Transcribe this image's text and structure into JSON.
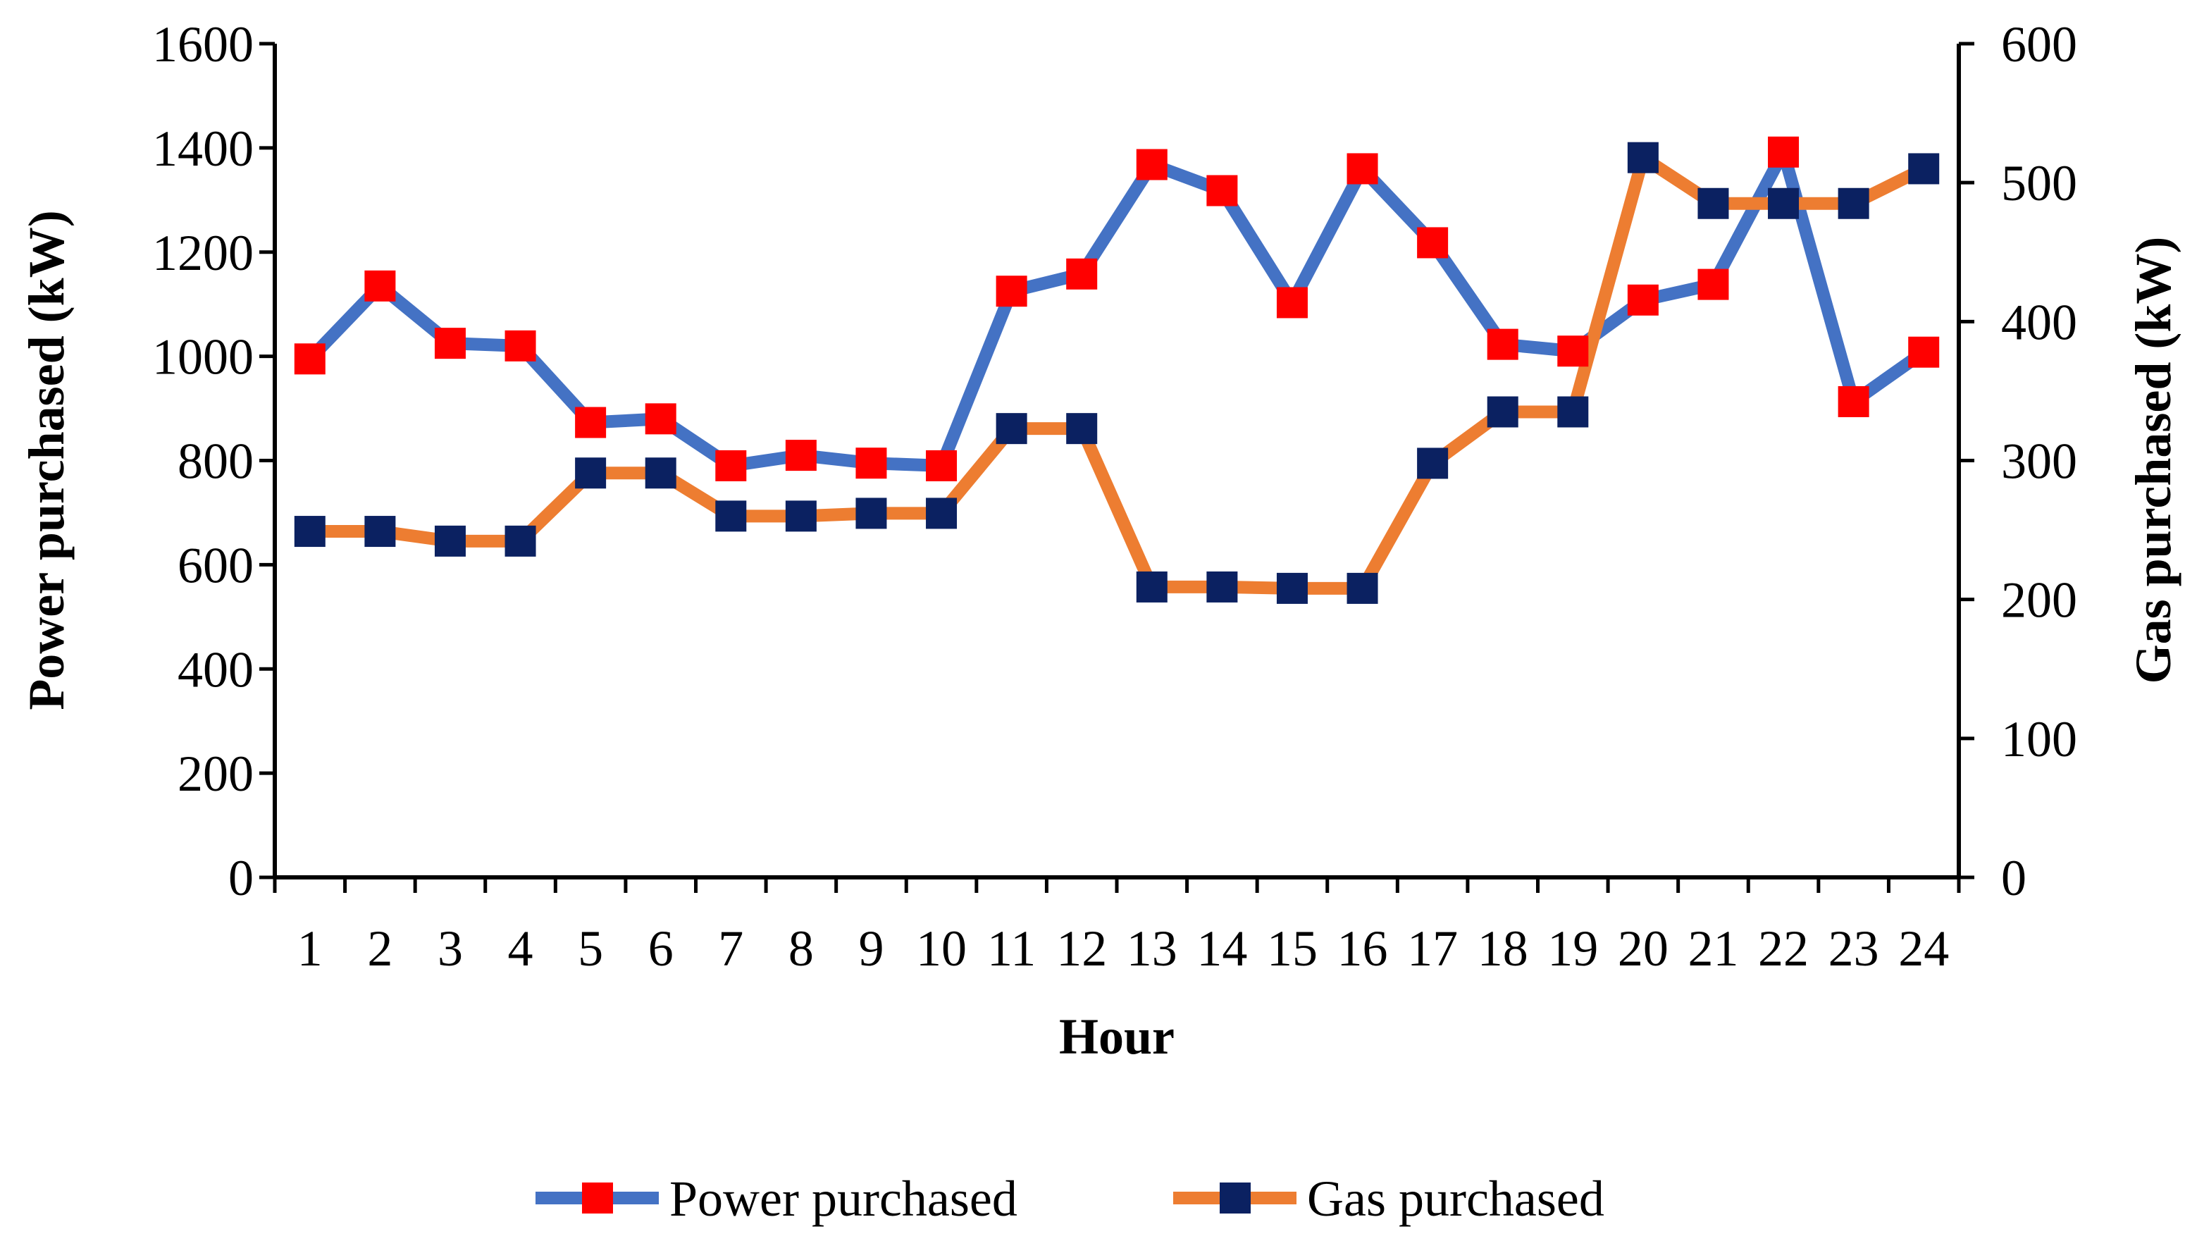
{
  "chart_data": {
    "type": "line",
    "x": [
      "1",
      "2",
      "3",
      "4",
      "5",
      "6",
      "7",
      "8",
      "9",
      "10",
      "11",
      "12",
      "13",
      "14",
      "15",
      "16",
      "17",
      "18",
      "19",
      "20",
      "21",
      "22",
      "23",
      "24"
    ],
    "xlabel": "Hour",
    "ylabel": "Power purchased (kW)",
    "y2label": "Gas purchased (kW)",
    "ylim": [
      0,
      1600
    ],
    "y2lim": [
      0,
      600
    ],
    "yticks": [
      "0",
      "200",
      "400",
      "600",
      "800",
      "1000",
      "1200",
      "1400",
      "1600"
    ],
    "y2ticks": [
      "0",
      "100",
      "200",
      "300",
      "400",
      "500",
      "600"
    ],
    "grid": false,
    "legend_position": "bottom",
    "series": [
      {
        "name": "Power purchased",
        "axis": "left",
        "line_color": "#4472C4",
        "marker_color": "#FF0000",
        "values": [
          995,
          1135,
          1025,
          1020,
          873,
          880,
          790,
          810,
          795,
          790,
          1125,
          1158,
          1368,
          1318,
          1103,
          1360,
          1218,
          1023,
          1010,
          1108,
          1138,
          1392,
          913,
          1008
        ]
      },
      {
        "name": "Gas purchased",
        "axis": "right",
        "line_color": "#ED7D31",
        "marker_color": "#0B2161",
        "values": [
          249,
          249,
          242,
          242,
          291,
          291,
          260,
          260,
          262,
          262,
          323,
          323,
          209,
          209,
          208,
          208,
          298,
          335,
          335,
          518,
          485,
          485,
          485,
          510
        ]
      }
    ]
  }
}
